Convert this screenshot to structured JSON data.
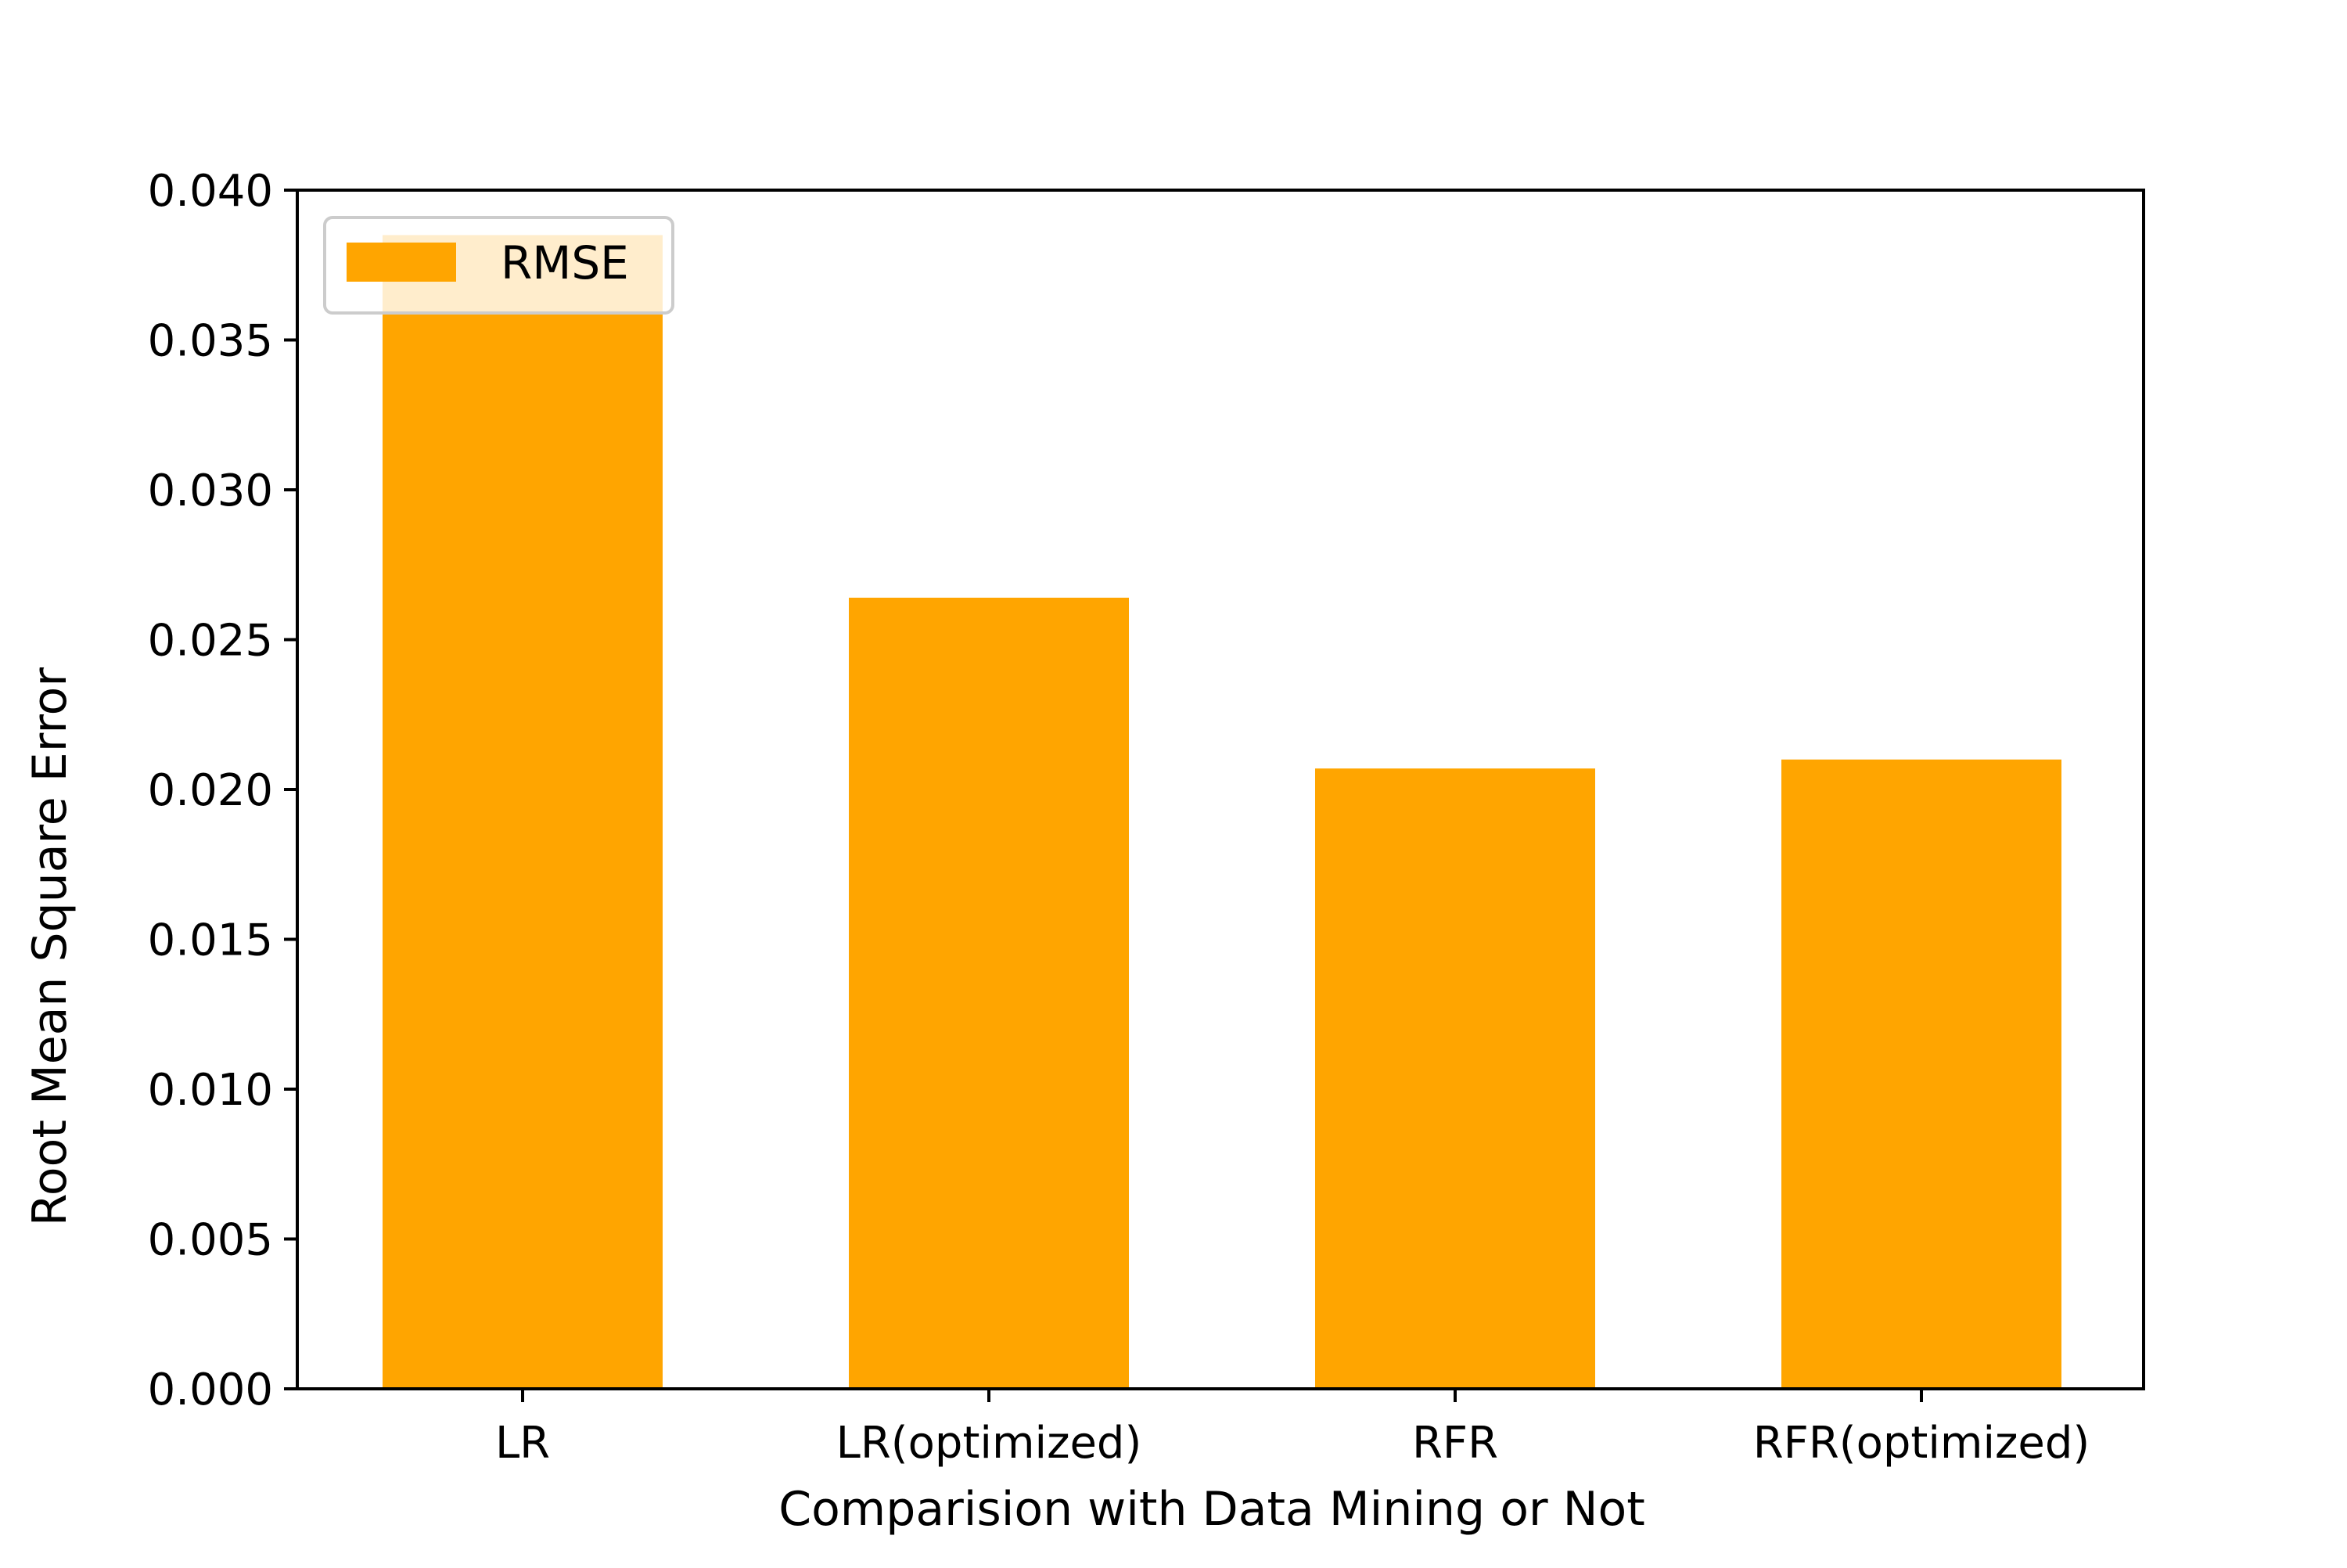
{
  "chart_data": {
    "type": "bar",
    "categories": [
      "LR",
      "LR(optimized)",
      "RFR",
      "RFR(optimized)"
    ],
    "series": [
      {
        "name": "RMSE",
        "values": [
          0.0385,
          0.0264,
          0.0207,
          0.021
        ],
        "color": "#ffa500"
      }
    ],
    "xlabel": "Comparision with Data Mining or Not",
    "ylabel": "Root Mean Square Error",
    "ylim": [
      0,
      0.04
    ],
    "yticks": [
      "0.000",
      "0.005",
      "0.010",
      "0.015",
      "0.020",
      "0.025",
      "0.030",
      "0.035",
      "0.040"
    ],
    "grid": false,
    "legend_position": "upper-left"
  }
}
